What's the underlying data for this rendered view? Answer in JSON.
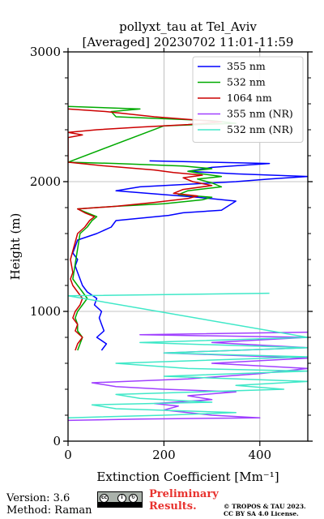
{
  "chart_data": {
    "type": "line",
    "title": "pollyxt_tau at Tel_Aviv",
    "subtitle": "[Averaged] 20230702 11:01-11:59",
    "xlabel": "Extinction Coefficient [Mm⁻¹]",
    "ylabel": "Height (m)",
    "xlim": [
      0,
      500
    ],
    "ylim": [
      0,
      3000
    ],
    "x_ticks": [
      "0",
      "200",
      "400"
    ],
    "x_tick_values": [
      0,
      200,
      400
    ],
    "y_ticks": [
      "0",
      "1000",
      "2000",
      "3000"
    ],
    "y_tick_values": [
      0,
      1000,
      2000,
      3000
    ],
    "grid": true,
    "legend_position": "top-right",
    "series": [
      {
        "name": "355 nm",
        "color": "#0000ff",
        "points": [
          [
            70,
            700
          ],
          [
            80,
            750
          ],
          [
            60,
            800
          ],
          [
            75,
            850
          ],
          [
            70,
            900
          ],
          [
            65,
            950
          ],
          [
            70,
            1000
          ],
          [
            55,
            1050
          ],
          [
            60,
            1100
          ],
          [
            40,
            1150
          ],
          [
            30,
            1200
          ],
          [
            25,
            1250
          ],
          [
            20,
            1300
          ],
          [
            15,
            1350
          ],
          [
            20,
            1400
          ],
          [
            10,
            1450
          ],
          [
            15,
            1500
          ],
          [
            20,
            1550
          ],
          [
            60,
            1600
          ],
          [
            90,
            1650
          ],
          [
            100,
            1700
          ],
          [
            210,
            1740
          ],
          [
            240,
            1760
          ],
          [
            320,
            1780
          ],
          [
            350,
            1850
          ],
          [
            270,
            1880
          ],
          [
            200,
            1900
          ],
          [
            100,
            1930
          ],
          [
            150,
            1960
          ],
          [
            350,
            2000
          ],
          [
            420,
            2020
          ],
          [
            500,
            2040
          ],
          [
            350,
            2060
          ],
          [
            250,
            2080
          ],
          [
            300,
            2110
          ],
          [
            420,
            2140
          ],
          [
            170,
            2160
          ]
        ]
      },
      {
        "name": "532 nm",
        "color": "#00aa00",
        "points": [
          [
            20,
            700
          ],
          [
            25,
            750
          ],
          [
            30,
            800
          ],
          [
            20,
            850
          ],
          [
            20,
            900
          ],
          [
            15,
            950
          ],
          [
            20,
            1000
          ],
          [
            30,
            1050
          ],
          [
            40,
            1100
          ],
          [
            30,
            1150
          ],
          [
            20,
            1200
          ],
          [
            10,
            1250
          ],
          [
            25,
            1600
          ],
          [
            40,
            1650
          ],
          [
            50,
            1700
          ],
          [
            60,
            1730
          ],
          [
            40,
            1760
          ],
          [
            20,
            1790
          ],
          [
            100,
            1810
          ],
          [
            200,
            1830
          ],
          [
            280,
            1860
          ],
          [
            300,
            1880
          ],
          [
            230,
            1900
          ],
          [
            250,
            1930
          ],
          [
            320,
            1960
          ],
          [
            300,
            1990
          ],
          [
            270,
            2020
          ],
          [
            320,
            2040
          ],
          [
            280,
            2060
          ],
          [
            250,
            2080
          ],
          [
            300,
            2100
          ],
          [
            240,
            2120
          ],
          [
            100,
            2140
          ],
          [
            0,
            2150
          ],
          [
            200,
            2430
          ],
          [
            350,
            2450
          ],
          [
            300,
            2470
          ],
          [
            100,
            2500
          ],
          [
            90,
            2540
          ],
          [
            150,
            2560
          ],
          [
            0,
            2580
          ]
        ]
      },
      {
        "name": "1064 nm",
        "color": "#cc0000",
        "points": [
          [
            15,
            700
          ],
          [
            20,
            750
          ],
          [
            30,
            800
          ],
          [
            15,
            850
          ],
          [
            20,
            900
          ],
          [
            10,
            950
          ],
          [
            15,
            1000
          ],
          [
            25,
            1050
          ],
          [
            30,
            1100
          ],
          [
            20,
            1150
          ],
          [
            10,
            1200
          ],
          [
            5,
            1250
          ],
          [
            10,
            1300
          ],
          [
            5,
            1400
          ],
          [
            20,
            1600
          ],
          [
            35,
            1650
          ],
          [
            45,
            1700
          ],
          [
            55,
            1730
          ],
          [
            35,
            1760
          ],
          [
            20,
            1790
          ],
          [
            100,
            1810
          ],
          [
            180,
            1840
          ],
          [
            250,
            1870
          ],
          [
            270,
            1890
          ],
          [
            220,
            1910
          ],
          [
            240,
            1940
          ],
          [
            300,
            1970
          ],
          [
            260,
            2000
          ],
          [
            240,
            2030
          ],
          [
            280,
            2050
          ],
          [
            220,
            2070
          ],
          [
            180,
            2090
          ],
          [
            80,
            2120
          ],
          [
            0,
            2150
          ],
          [
            0,
            2340
          ],
          [
            30,
            2360
          ],
          [
            0,
            2380
          ],
          [
            60,
            2400
          ],
          [
            150,
            2420
          ],
          [
            250,
            2440
          ],
          [
            320,
            2460
          ],
          [
            180,
            2500
          ],
          [
            80,
            2540
          ],
          [
            0,
            2560
          ]
        ]
      },
      {
        "name": "355 nm (NR)",
        "color": "#a040ff",
        "points": [
          [
            0,
            160
          ],
          [
            150,
            170
          ],
          [
            400,
            180
          ],
          [
            300,
            200
          ],
          [
            200,
            240
          ],
          [
            230,
            270
          ],
          [
            180,
            290
          ],
          [
            300,
            320
          ],
          [
            250,
            350
          ],
          [
            350,
            380
          ],
          [
            200,
            400
          ],
          [
            100,
            420
          ],
          [
            50,
            450
          ],
          [
            250,
            480
          ],
          [
            400,
            520
          ],
          [
            500,
            560
          ],
          [
            300,
            600
          ],
          [
            500,
            640
          ],
          [
            200,
            680
          ],
          [
            500,
            720
          ],
          [
            300,
            760
          ],
          [
            500,
            800
          ],
          [
            150,
            820
          ],
          [
            500,
            840
          ]
        ]
      },
      {
        "name": "532 nm (NR)",
        "color": "#40e8c8",
        "points": [
          [
            0,
            180
          ],
          [
            200,
            200
          ],
          [
            350,
            220
          ],
          [
            100,
            250
          ],
          [
            50,
            280
          ],
          [
            300,
            300
          ],
          [
            150,
            330
          ],
          [
            100,
            360
          ],
          [
            450,
            400
          ],
          [
            350,
            430
          ],
          [
            500,
            460
          ],
          [
            200,
            500
          ],
          [
            500,
            540
          ],
          [
            250,
            560
          ],
          [
            100,
            600
          ],
          [
            500,
            650
          ],
          [
            200,
            680
          ],
          [
            500,
            720
          ],
          [
            150,
            760
          ],
          [
            500,
            800
          ],
          [
            0,
            1120
          ],
          [
            420,
            1140
          ]
        ]
      }
    ]
  },
  "footer": {
    "version": "Version: 3.6",
    "method": "Method: Raman",
    "preliminary_line1": "Preliminary",
    "preliminary_line2": "Results.",
    "copyright_line1": "© TROPOS & TAU 2023.",
    "copyright_line2": "CC BY SA 4.0 License."
  }
}
